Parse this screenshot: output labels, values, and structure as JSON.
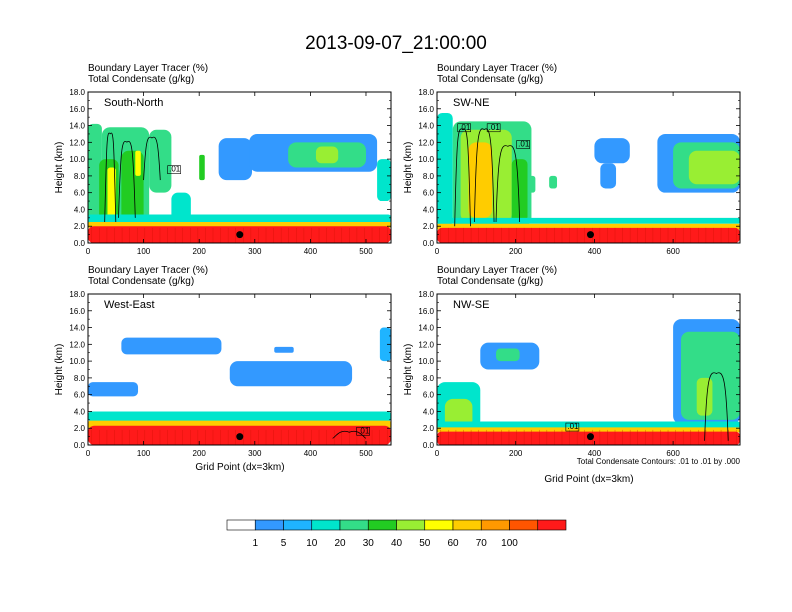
{
  "chart_data": {
    "type": "heatmap",
    "title": "2013-09-07_21:00:00",
    "ylabel": "Height (km)",
    "xlabel": "Grid Point (dx=3km)",
    "contour_note": "Total Condensate Contours: .01 to .01 by .000",
    "y_ticks": [
      "0.0",
      "2.0",
      "4.0",
      "6.0",
      "8.0",
      "10.0",
      "12.0",
      "14.0",
      "16.0",
      "18.0"
    ],
    "ylim": [
      0,
      18
    ],
    "colorbar": {
      "colors": [
        "#ffffff",
        "#3399ff",
        "#1fb4ff",
        "#00e5cc",
        "#33dd88",
        "#22cc22",
        "#99ee33",
        "#ffff00",
        "#ffcc00",
        "#ff9900",
        "#ff5500",
        "#ff1a1a"
      ],
      "labels": [
        "1",
        "5",
        "10",
        "20",
        "30",
        "40",
        "50",
        "60",
        "70",
        "100"
      ]
    },
    "panels": [
      {
        "id": "sn",
        "name": "South-North",
        "subtitle_line1": "Boundary Layer Tracer   (%)",
        "subtitle_line2": "Total Condensate   (g/kg)",
        "x_ticks": [
          {
            "v": 0,
            "t": "0"
          },
          {
            "v": 100,
            "t": "100"
          },
          {
            "v": 200,
            "t": "200"
          },
          {
            "v": 300,
            "t": "300"
          },
          {
            "v": 400,
            "t": "400"
          },
          {
            "v": 500,
            "t": "500"
          }
        ],
        "xlim": [
          0,
          545
        ],
        "marker": {
          "x": 273,
          "y": 1.0
        },
        "contour_labels": [
          {
            "x": 145,
            "y": 8.5,
            "t": ".01"
          }
        ],
        "blobs": [
          {
            "x": 0,
            "w": 25,
            "y0": 2.0,
            "y1": 14.2,
            "c": 4
          },
          {
            "x": 25,
            "w": 85,
            "y0": 2.0,
            "y1": 13.8,
            "c": 4
          },
          {
            "x": 110,
            "w": 40,
            "y0": 6.0,
            "y1": 13.5,
            "c": 4
          },
          {
            "x": 150,
            "w": 35,
            "y0": 2.0,
            "y1": 6.0,
            "c": 3
          },
          {
            "x": 20,
            "w": 35,
            "y0": 2.0,
            "y1": 10.0,
            "c": 5
          },
          {
            "x": 60,
            "w": 40,
            "y0": 2.5,
            "y1": 11.0,
            "c": 5
          },
          {
            "x": 35,
            "w": 15,
            "y0": 3.0,
            "y1": 9.0,
            "c": 7
          },
          {
            "x": 85,
            "w": 10,
            "y0": 8.0,
            "y1": 11.0,
            "c": 7
          },
          {
            "x": 200,
            "w": 10,
            "y0": 7.5,
            "y1": 10.5,
            "c": 5
          },
          {
            "x": 235,
            "w": 60,
            "y0": 7.5,
            "y1": 12.5,
            "c": 1
          },
          {
            "x": 290,
            "w": 230,
            "y0": 8.5,
            "y1": 13.0,
            "c": 1
          },
          {
            "x": 360,
            "w": 140,
            "y0": 9.0,
            "y1": 12.0,
            "c": 4
          },
          {
            "x": 410,
            "w": 40,
            "y0": 9.5,
            "y1": 11.5,
            "c": 6
          },
          {
            "x": 520,
            "w": 25,
            "y0": 5.0,
            "y1": 10.0,
            "c": 3
          },
          {
            "x": 0,
            "w": 545,
            "y0": 2.4,
            "y1": 3.4,
            "c": 3
          },
          {
            "x": 0,
            "w": 545,
            "y0": 1.8,
            "y1": 2.5,
            "c": 8
          },
          {
            "x": 0,
            "w": 545,
            "y0": 0.0,
            "y1": 2.0,
            "c": 11
          }
        ],
        "contours": [
          {
            "x": 30,
            "w": 20,
            "y0": 2.5,
            "y1": 13.5
          },
          {
            "x": 55,
            "w": 30,
            "y0": 3.0,
            "y1": 12.5
          },
          {
            "x": 100,
            "w": 30,
            "y0": 7.5,
            "y1": 13.0
          }
        ]
      },
      {
        "id": "swne",
        "name": "SW-NE",
        "subtitle_line1": "Boundary Layer Tracer   (%)",
        "subtitle_line2": "Total Condensate   (g/kg)",
        "x_ticks": [
          {
            "v": 0,
            "t": "0"
          },
          {
            "v": 200,
            "t": "200"
          },
          {
            "v": 400,
            "t": "400"
          },
          {
            "v": 600,
            "t": "600"
          }
        ],
        "xlim": [
          0,
          770
        ],
        "marker": {
          "x": 390,
          "y": 1.0
        },
        "contour_labels": [
          {
            "x": 55,
            "y": 13.5,
            "t": ".01"
          },
          {
            "x": 130,
            "y": 13.5,
            "t": ".01"
          },
          {
            "x": 205,
            "y": 11.5,
            "t": ".01"
          }
        ],
        "blobs": [
          {
            "x": 0,
            "w": 40,
            "y0": 2.0,
            "y1": 15.5,
            "c": 3
          },
          {
            "x": 40,
            "w": 200,
            "y0": 2.0,
            "y1": 14.5,
            "c": 4
          },
          {
            "x": 60,
            "w": 130,
            "y0": 2.5,
            "y1": 13.5,
            "c": 6
          },
          {
            "x": 80,
            "w": 60,
            "y0": 3.0,
            "y1": 12.0,
            "c": 8
          },
          {
            "x": 190,
            "w": 40,
            "y0": 2.5,
            "y1": 10.0,
            "c": 5
          },
          {
            "x": 230,
            "w": 20,
            "y0": 6.0,
            "y1": 8.0,
            "c": 4
          },
          {
            "x": 285,
            "w": 20,
            "y0": 6.5,
            "y1": 8.0,
            "c": 4
          },
          {
            "x": 400,
            "w": 90,
            "y0": 9.5,
            "y1": 12.5,
            "c": 1
          },
          {
            "x": 415,
            "w": 40,
            "y0": 6.5,
            "y1": 9.5,
            "c": 1
          },
          {
            "x": 560,
            "w": 210,
            "y0": 6.0,
            "y1": 13.0,
            "c": 1
          },
          {
            "x": 600,
            "w": 170,
            "y0": 6.5,
            "y1": 12.0,
            "c": 4
          },
          {
            "x": 640,
            "w": 130,
            "y0": 7.0,
            "y1": 11.0,
            "c": 6
          },
          {
            "x": 0,
            "w": 770,
            "y0": 2.3,
            "y1": 3.0,
            "c": 3
          },
          {
            "x": 0,
            "w": 770,
            "y0": 1.6,
            "y1": 2.3,
            "c": 8
          },
          {
            "x": 0,
            "w": 770,
            "y0": 0.0,
            "y1": 1.8,
            "c": 11
          }
        ],
        "contours": [
          {
            "x": 45,
            "w": 40,
            "y0": 2.0,
            "y1": 14.0
          },
          {
            "x": 95,
            "w": 50,
            "y0": 2.5,
            "y1": 14.0
          },
          {
            "x": 150,
            "w": 60,
            "y0": 2.5,
            "y1": 12.0
          }
        ]
      },
      {
        "id": "we",
        "name": "West-East",
        "subtitle_line1": "Boundary Layer Tracer   (%)",
        "subtitle_line2": "Total Condensate   (g/kg)",
        "x_ticks": [
          {
            "v": 0,
            "t": "0"
          },
          {
            "v": 100,
            "t": "100"
          },
          {
            "v": 200,
            "t": "200"
          },
          {
            "v": 300,
            "t": "300"
          },
          {
            "v": 400,
            "t": "400"
          },
          {
            "v": 500,
            "t": "500"
          }
        ],
        "xlim": [
          0,
          545
        ],
        "marker": {
          "x": 273,
          "y": 1.0
        },
        "contour_labels": [
          {
            "x": 485,
            "y": 1.4,
            "t": ".01"
          }
        ],
        "blobs": [
          {
            "x": 0,
            "w": 90,
            "y0": 5.8,
            "y1": 7.5,
            "c": 1
          },
          {
            "x": 60,
            "w": 180,
            "y0": 10.8,
            "y1": 12.8,
            "c": 1
          },
          {
            "x": 255,
            "w": 220,
            "y0": 7.0,
            "y1": 10.0,
            "c": 1
          },
          {
            "x": 335,
            "w": 35,
            "y0": 11.0,
            "y1": 11.7,
            "c": 1
          },
          {
            "x": 525,
            "w": 20,
            "y0": 10.0,
            "y1": 14.0,
            "c": 2
          },
          {
            "x": 0,
            "w": 545,
            "y0": 2.8,
            "y1": 4.0,
            "c": 3
          },
          {
            "x": 0,
            "w": 545,
            "y0": 2.0,
            "y1": 2.9,
            "c": 8
          },
          {
            "x": 0,
            "w": 545,
            "y0": 0.0,
            "y1": 2.3,
            "c": 11
          }
        ],
        "contours": [
          {
            "x": 440,
            "w": 60,
            "y0": 0.8,
            "y1": 2.0
          }
        ]
      },
      {
        "id": "nwse",
        "name": "NW-SE",
        "subtitle_line1": "Boundary Layer Tracer   (%)",
        "subtitle_line2": "Total Condensate   (g/kg)",
        "x_ticks": [
          {
            "v": 0,
            "t": "0"
          },
          {
            "v": 200,
            "t": "200"
          },
          {
            "v": 400,
            "t": "400"
          },
          {
            "v": 600,
            "t": "600"
          }
        ],
        "xlim": [
          0,
          770
        ],
        "marker": {
          "x": 390,
          "y": 1.0
        },
        "contour_labels": [
          {
            "x": 330,
            "y": 1.9,
            "t": ".01"
          }
        ],
        "blobs": [
          {
            "x": 110,
            "w": 150,
            "y0": 9.0,
            "y1": 12.2,
            "c": 1
          },
          {
            "x": 150,
            "w": 60,
            "y0": 10.0,
            "y1": 11.5,
            "c": 4
          },
          {
            "x": 0,
            "w": 110,
            "y0": 2.0,
            "y1": 7.5,
            "c": 3
          },
          {
            "x": 20,
            "w": 70,
            "y0": 2.0,
            "y1": 5.5,
            "c": 6
          },
          {
            "x": 600,
            "w": 170,
            "y0": 2.5,
            "y1": 15.0,
            "c": 1
          },
          {
            "x": 620,
            "w": 150,
            "y0": 3.0,
            "y1": 13.5,
            "c": 4
          },
          {
            "x": 660,
            "w": 40,
            "y0": 3.5,
            "y1": 8.0,
            "c": 6
          },
          {
            "x": 0,
            "w": 770,
            "y0": 2.0,
            "y1": 2.8,
            "c": 3
          },
          {
            "x": 0,
            "w": 770,
            "y0": 1.5,
            "y1": 2.1,
            "c": 8
          },
          {
            "x": 0,
            "w": 770,
            "y0": 0.0,
            "y1": 1.6,
            "c": 11
          }
        ],
        "contours": [
          {
            "x": 680,
            "w": 60,
            "y0": 0.5,
            "y1": 9.0
          }
        ]
      }
    ]
  }
}
